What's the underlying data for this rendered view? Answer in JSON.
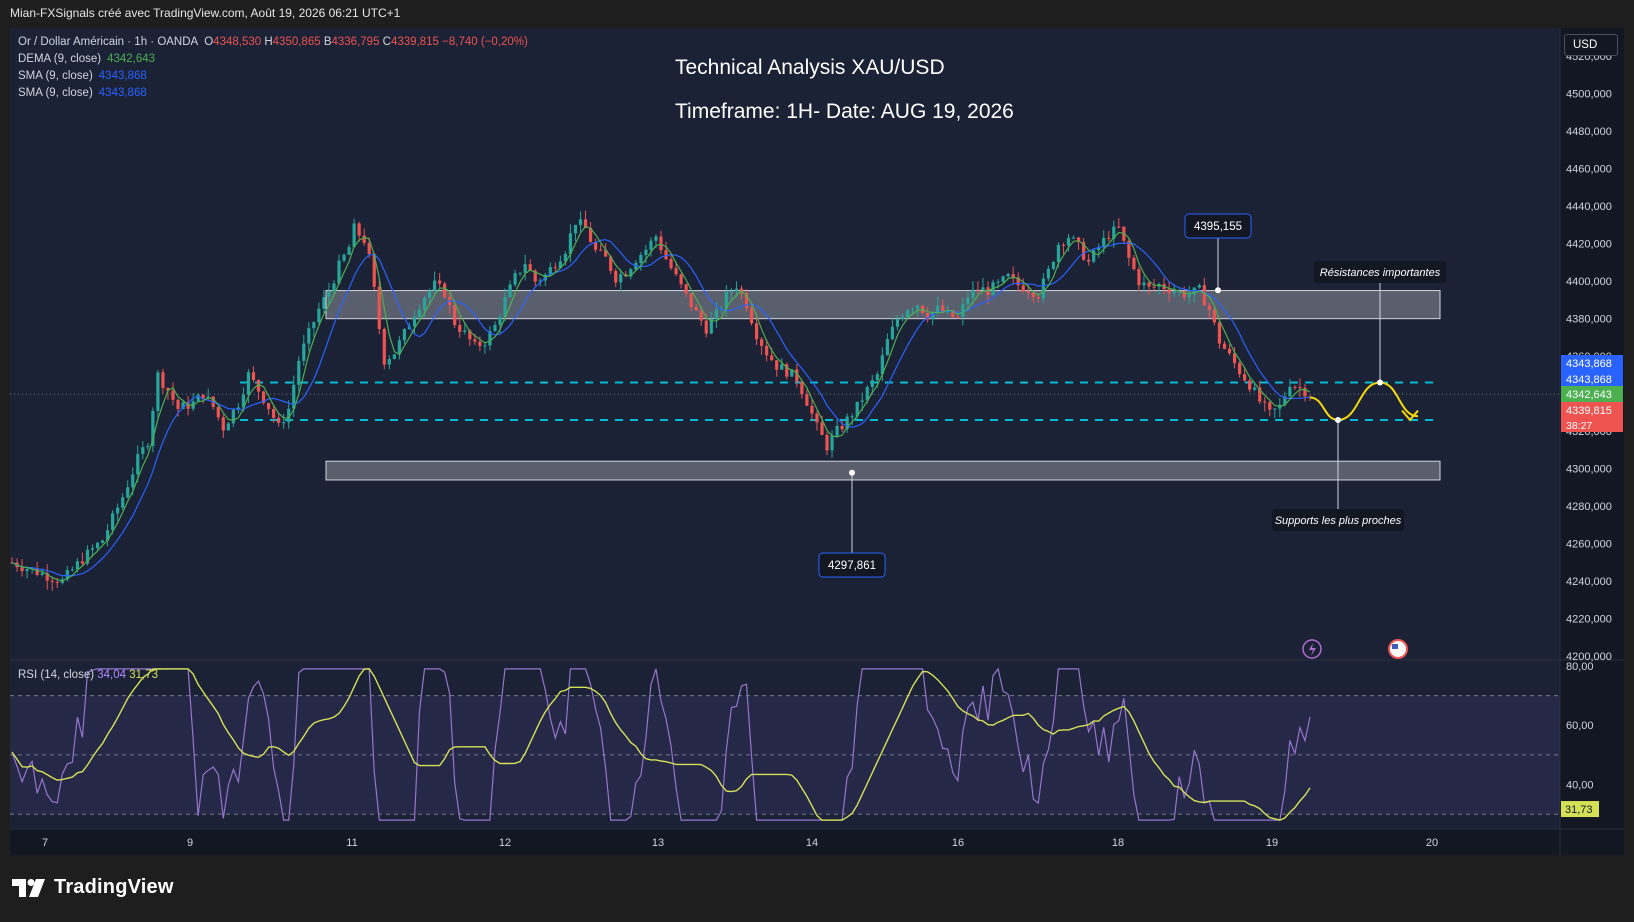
{
  "app": {
    "header": "Mian-FXSignals créé avec TradingView.com, Août 19, 2026 06:21 UTC+1",
    "logo_text": "TradingView",
    "logo_icon": "tradingview-logo-icon",
    "currency_button": "USD"
  },
  "legend": {
    "symbol": "Or / Dollar Américain · 1h · OANDA",
    "ohlc": {
      "o_label": "O",
      "o": "4348,530",
      "h_label": "H",
      "h": "4350,865",
      "b_label": "B",
      "b": "4336,795",
      "c_label": "C",
      "c": "4339,815",
      "change": "−8,740 (−0,20%)"
    },
    "indicators": [
      {
        "name": "DEMA (9, close)",
        "value": "4342,643",
        "color": "#4caf50"
      },
      {
        "name": "SMA (9, close)",
        "value": "4343,868",
        "color": "#2962ff"
      },
      {
        "name": "SMA (9, close)",
        "value": "4343,868",
        "color": "#2962ff"
      }
    ]
  },
  "annotations": {
    "title": "Technical Analysis XAU/USD",
    "subtitle": "Timeframe: 1H- Date: AUG 19, 2026",
    "callout_high": "4395,155",
    "callout_low": "4297,861",
    "resistance_label": "Résistances importantes",
    "support_label": "Supports les plus proches"
  },
  "colors": {
    "background": "#1b2236",
    "up": "#26a69a",
    "down": "#ef5350",
    "dema": "#4caf50",
    "sma": "#2962ff",
    "dashed": "#00bcd4",
    "projection": "#f5d90a",
    "rsi": "#7e57c2",
    "rsi_ma": "#d4e157"
  },
  "chart_data": [
    {
      "type": "candlestick",
      "title": "Or / Dollar Américain · 1h · OANDA",
      "x_ticks": [
        "7",
        "9",
        "11",
        "12",
        "13",
        "14",
        "16",
        "18",
        "19",
        "20"
      ],
      "y_ticks": [
        "4520,000",
        "4500,000",
        "4480,000",
        "4460,000",
        "4440,000",
        "4420,000",
        "4400,000",
        "4380,000",
        "4360,000",
        "4340,000",
        "4320,000",
        "4300,000",
        "4280,000",
        "4260,000",
        "4240,000",
        "4220,000",
        "4200,000"
      ],
      "ylim": [
        4198,
        4535
      ],
      "price_path": [
        [
          0,
          4250
        ],
        [
          10,
          4240
        ],
        [
          14,
          4252
        ],
        [
          18,
          4262
        ],
        [
          22,
          4285
        ],
        [
          25,
          4305
        ],
        [
          27,
          4315
        ],
        [
          29,
          4350
        ],
        [
          31,
          4342
        ],
        [
          33,
          4332
        ],
        [
          36,
          4335
        ],
        [
          38,
          4340
        ],
        [
          40,
          4333
        ],
        [
          42,
          4322
        ],
        [
          45,
          4335
        ],
        [
          47,
          4350
        ],
        [
          49,
          4342
        ],
        [
          51,
          4333
        ],
        [
          53,
          4322
        ],
        [
          55,
          4332
        ],
        [
          57,
          4358
        ],
        [
          59,
          4372
        ],
        [
          61,
          4385
        ],
        [
          63,
          4395
        ],
        [
          65,
          4408
        ],
        [
          67,
          4418
        ],
        [
          68,
          4428
        ],
        [
          70,
          4422
        ],
        [
          71,
          4412
        ],
        [
          72,
          4395
        ],
        [
          73,
          4375
        ],
        [
          74,
          4358
        ],
        [
          76,
          4362
        ],
        [
          78,
          4372
        ],
        [
          80,
          4383
        ],
        [
          82,
          4392
        ],
        [
          84,
          4398
        ],
        [
          86,
          4394
        ],
        [
          88,
          4378
        ],
        [
          90,
          4372
        ],
        [
          92,
          4365
        ],
        [
          94,
          4368
        ],
        [
          96,
          4376
        ],
        [
          98,
          4390
        ],
        [
          100,
          4402
        ],
        [
          102,
          4410
        ],
        [
          104,
          4400
        ],
        [
          106,
          4403
        ],
        [
          108,
          4410
        ],
        [
          110,
          4417
        ],
        [
          112,
          4432
        ],
        [
          114,
          4428
        ],
        [
          116,
          4416
        ],
        [
          118,
          4412
        ],
        [
          120,
          4402
        ],
        [
          122,
          4405
        ],
        [
          124,
          4412
        ],
        [
          126,
          4417
        ],
        [
          128,
          4424
        ],
        [
          130,
          4412
        ],
        [
          132,
          4402
        ],
        [
          134,
          4392
        ],
        [
          136,
          4383
        ],
        [
          138,
          4375
        ],
        [
          140,
          4382
        ],
        [
          142,
          4392
        ],
        [
          144,
          4398
        ],
        [
          146,
          4388
        ],
        [
          148,
          4372
        ],
        [
          150,
          4362
        ],
        [
          152,
          4355
        ],
        [
          154,
          4352
        ],
        [
          156,
          4348
        ],
        [
          158,
          4336
        ],
        [
          160,
          4322
        ],
        [
          162,
          4312
        ],
        [
          164,
          4320
        ],
        [
          166,
          4326
        ],
        [
          168,
          4333
        ],
        [
          170,
          4342
        ],
        [
          172,
          4350
        ],
        [
          174,
          4368
        ],
        [
          176,
          4380
        ],
        [
          178,
          4386
        ],
        [
          180,
          4388
        ],
        [
          182,
          4382
        ],
        [
          184,
          4385
        ],
        [
          186,
          4382
        ],
        [
          188,
          4380
        ],
        [
          190,
          4392
        ],
        [
          192,
          4396
        ],
        [
          194,
          4395
        ],
        [
          196,
          4398
        ],
        [
          198,
          4402
        ],
        [
          200,
          4398
        ],
        [
          202,
          4396
        ],
        [
          204,
          4393
        ],
        [
          206,
          4405
        ],
        [
          208,
          4420
        ],
        [
          210,
          4424
        ],
        [
          212,
          4418
        ],
        [
          214,
          4410
        ],
        [
          216,
          4418
        ],
        [
          218,
          4425
        ],
        [
          220,
          4428
        ],
        [
          222,
          4412
        ],
        [
          224,
          4400
        ],
        [
          226,
          4396
        ],
        [
          228,
          4398
        ],
        [
          230,
          4396
        ],
        [
          232,
          4394
        ],
        [
          234,
          4393
        ],
        [
          236,
          4395
        ],
        [
          238,
          4385
        ],
        [
          240,
          4368
        ],
        [
          242,
          4360
        ],
        [
          244,
          4352
        ],
        [
          246,
          4345
        ],
        [
          248,
          4336
        ],
        [
          250,
          4329
        ],
        [
          252,
          4333
        ],
        [
          254,
          4346
        ],
        [
          256,
          4343
        ],
        [
          258,
          4340
        ]
      ],
      "price_labels": [
        {
          "value": "4343,868",
          "color": "#2962ff"
        },
        {
          "value": "4343,868",
          "color": "#2962ff"
        },
        {
          "value": "4342,643",
          "color": "#4caf50"
        },
        {
          "value": "4339,815",
          "color": "#ef5350",
          "countdown": "38:27"
        }
      ],
      "zones": [
        {
          "name": "resistance-zone",
          "y_top": 4395,
          "y_bottom": 4380
        },
        {
          "name": "support-zone",
          "y_top": 4304,
          "y_bottom": 4294
        }
      ],
      "dashed_levels": [
        4346,
        4326
      ],
      "projection": [
        [
          0,
          4338
        ],
        [
          1,
          4326
        ],
        [
          2,
          4346
        ],
        [
          3,
          4328
        ]
      ],
      "callouts": [
        {
          "label": "4395,155",
          "price": 4395.155
        },
        {
          "label": "4297,861",
          "price": 4297.861
        }
      ]
    },
    {
      "type": "line",
      "title": "RSI (14, close)",
      "series": [
        {
          "name": "RSI (14, close)",
          "last": "34,04",
          "color": "#7e57c2"
        },
        {
          "name": "RSI MA",
          "last": "31,73",
          "color": "#d4e157"
        }
      ],
      "y_ticks": [
        "80,00",
        "60,00",
        "40,00"
      ],
      "ylim": [
        25,
        82
      ],
      "bands": [
        70,
        50,
        30
      ],
      "rsi_ma_label": "31,73"
    }
  ]
}
